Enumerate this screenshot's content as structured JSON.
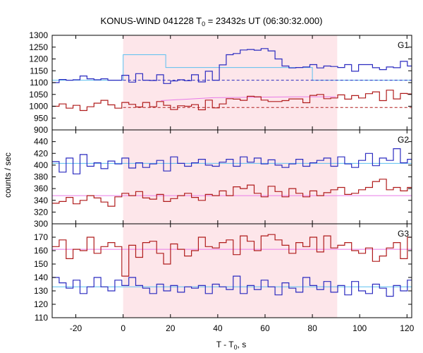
{
  "chart_data": {
    "type": "line",
    "title_main": "KONUS-WIND 041228 T",
    "title_sub": "0",
    "title_rest": " = 23432s UT (06:30:32.000)",
    "ylabel": "counts / sec",
    "xlabel_main": "T - T",
    "xlabel_sub": "0",
    "xlabel_rest": ", s",
    "xlim": [
      -30,
      122
    ],
    "xticks": [
      -20,
      0,
      20,
      40,
      60,
      80,
      100,
      120
    ],
    "xtick_labels": [
      "-20",
      "0",
      "20",
      "40",
      "60",
      "80",
      "100",
      "120"
    ],
    "highlight_interval": [
      0,
      90.5
    ],
    "colors": {
      "blue": "#2b2bc0",
      "red": "#b01c1c",
      "fit_light": "#5cc0f0",
      "fit_pink": "#e87ae8",
      "band": "#fde6ea"
    },
    "panels": [
      {
        "label": "G1",
        "ylim": [
          900,
          1300
        ],
        "yticks": [
          900,
          950,
          1000,
          1050,
          1100,
          1150,
          1200,
          1250,
          1300
        ],
        "ytick_labels": [
          "900",
          "950",
          "1000",
          "1050",
          "1100",
          "1150",
          "1200",
          "1250",
          "1300"
        ],
        "bin_width": 2.944,
        "x_start": -30,
        "series": [
          {
            "color": "blue",
            "values": [
              1100,
              1113,
              1110,
              1112,
              1128,
              1116,
              1112,
              1116,
              1110,
              1110,
              1131,
              1102,
              1138,
              1110,
              1109,
              1133,
              1096,
              1107,
              1112,
              1108,
              1133,
              1103,
              1148,
              1110,
              1175,
              1218,
              1223,
              1238,
              1240,
              1237,
              1244,
              1234,
              1200,
              1170,
              1162,
              1164,
              1166,
              1176,
              1162,
              1170,
              1168,
              1164,
              1176,
              1148,
              1176,
              1176,
              1163,
              1155,
              1166,
              1163,
              1190,
              1170,
              1160,
              1146,
              1188,
              1172,
              1162,
              1162,
              1150,
              1140,
              1112,
              1116,
              1115,
              1111,
              1114,
              1110,
              1112,
              1110,
              1110,
              1118,
              1114,
              1112,
              1108,
              1110,
              1110,
              1112,
              1108,
              1112,
              1132,
              1105,
              1116,
              1113,
              1114,
              1112,
              1112,
              1110,
              1112,
              1126,
              1112,
              1115,
              1131,
              1108,
              1112,
              1107,
              1108,
              1110,
              1130,
              1112,
              1116,
              1110,
              1113
            ]
          },
          {
            "color": "red",
            "values": [
              1000,
              1010,
              992,
              1004,
              982,
              998,
              1013,
              1025,
              1006,
              992,
              1016,
              1008,
              997,
              1016,
              998,
              1020,
              1004,
              986,
              1002,
              1000,
              1007,
              985,
              1026,
              993,
              1010,
              1032,
              1030,
              1025,
              1042,
              1040,
              1026,
              1020,
              1020,
              1024,
              1031,
              1031,
              1015,
              1046,
              1050,
              1032,
              1035,
              1048,
              1030,
              1045,
              1035,
              1053,
              1061,
              1024,
              1068,
              1031,
              1054,
              1052,
              1055,
              1062,
              1043,
              1028,
              1036,
              1064,
              1040,
              1025,
              1012,
              1006,
              994,
              1002,
              988,
              1012,
              1003,
              990,
              1006,
              996,
              988,
              1008,
              991,
              982,
              1002,
              1000,
              1017,
              990,
              1032,
              993,
              1004,
              994,
              1012,
              994,
              986,
              996,
              1002,
              1014,
              1000,
              995,
              1023,
              1000,
              1016,
              997,
              1002,
              1024,
              1007,
              992,
              980,
              1000,
              1006
            ]
          }
        ],
        "fits": [
          {
            "color": "fit_light",
            "segments": [
              [
                -30,
                1110
              ],
              [
                0,
                1110
              ],
              [
                0,
                1218
              ],
              [
                18,
                1218
              ],
              [
                18,
                1164
              ],
              [
                80,
                1164
              ],
              [
                80,
                1110
              ],
              [
                122,
                1110
              ]
            ]
          },
          {
            "color": "blue",
            "dashed": true,
            "segments": [
              [
                0,
                1110
              ],
              [
                122,
                1110
              ]
            ]
          },
          {
            "color": "fit_pink",
            "segments": [
              [
                16,
                1024
              ],
              [
                38,
                1036
              ],
              [
                74,
                1040
              ],
              [
                90,
                1040
              ]
            ]
          },
          {
            "color": "red",
            "dashed": true,
            "segments": [
              [
                0,
                995
              ],
              [
                122,
                995
              ]
            ]
          }
        ]
      },
      {
        "label": "G2",
        "ylim": [
          300,
          460
        ],
        "yticks": [
          300,
          320,
          340,
          360,
          380,
          400,
          420,
          440
        ],
        "ytick_labels": [
          "300",
          "320",
          "340",
          "360",
          "380",
          "400",
          "420",
          "440"
        ],
        "bin_width": 2.944,
        "x_start": -30,
        "series": [
          {
            "color": "blue",
            "values": [
              406,
              388,
              412,
              385,
              418,
              398,
              404,
              394,
              407,
              402,
              412,
              395,
              404,
              396,
              402,
              408,
              390,
              414,
              403,
              398,
              404,
              410,
              400,
              398,
              405,
              410,
              398,
              414,
              405,
              412,
              402,
              409,
              400,
              396,
              402,
              410,
              398,
              404,
              408,
              412,
              398,
              414,
              402,
              396,
              408,
              420,
              399,
              412,
              408,
              428,
              404,
              410,
              396,
              410,
              426,
              404,
              414,
              420,
              402,
              412,
              406,
              403,
              415,
              398,
              412,
              404,
              412,
              407,
              404,
              398,
              402,
              412,
              398,
              415,
              404,
              392,
              404,
              412,
              398,
              408,
              400,
              425,
              404,
              412,
              400,
              402,
              396,
              408,
              404,
              415,
              400,
              410,
              402,
              418,
              404,
              396,
              410,
              402,
              418,
              403,
              405
            ]
          },
          {
            "color": "red",
            "values": [
              335,
              338,
              345,
              334,
              340,
              348,
              344,
              337,
              330,
              346,
              352,
              348,
              355,
              344,
              342,
              350,
              338,
              343,
              348,
              352,
              345,
              340,
              350,
              348,
              356,
              348,
              363,
              360,
              366,
              352,
              346,
              364,
              355,
              346,
              360,
              352,
              346,
              356,
              348,
              353,
              358,
              362,
              350,
              352,
              358,
              362,
              372,
              376,
              358,
              362,
              356,
              362,
              356,
              352,
              360,
              350,
              356,
              350,
              346,
              352,
              338,
              346,
              352,
              344,
              350,
              354,
              344,
              350,
              354,
              346,
              362,
              352,
              348,
              358,
              352,
              346,
              344,
              358,
              351,
              346,
              338,
              348,
              360,
              352,
              344,
              354,
              348,
              358,
              344,
              350,
              360,
              352,
              346,
              354,
              342,
              356,
              344,
              348,
              352,
              346,
              350
            ]
          }
        ],
        "fits": [
          {
            "color": "fit_light",
            "segments": [
              [
                -30,
                403
              ],
              [
                122,
                403
              ]
            ]
          },
          {
            "color": "fit_pink",
            "segments": [
              [
                -30,
                348
              ],
              [
                122,
                348
              ]
            ]
          }
        ]
      },
      {
        "label": "G3",
        "ylim": [
          110,
          180
        ],
        "yticks": [
          110,
          120,
          130,
          140,
          150,
          160,
          170
        ],
        "ytick_labels": [
          "110",
          "120",
          "130",
          "140",
          "150",
          "160",
          "170"
        ],
        "bin_width": 2.944,
        "x_start": -30,
        "series": [
          {
            "color": "red",
            "values": [
              163,
              168,
              154,
              161,
              160,
              170,
              158,
              163,
              166,
              163,
              141,
              164,
              155,
              166,
              167,
              158,
              150,
              165,
              161,
              156,
              160,
              170,
              163,
              162,
              166,
              168,
              157,
              171,
              167,
              160,
              171,
              172,
              168,
              164,
              158,
              166,
              163,
              170,
              159,
              171,
              162,
              164,
              166,
              160,
              158,
              162,
              152,
              156,
              162,
              166,
              154,
              170,
              168,
              152,
              164,
              172,
              161,
              166,
              158,
              170,
              160,
              168,
              164,
              159,
              156,
              162,
              166,
              150,
              157,
              160,
              162,
              168,
              156,
              165,
              160,
              166,
              148,
              162,
              168,
              160,
              164,
              162,
              166,
              159,
              170,
              160,
              152,
              162,
              156,
              164,
              160,
              166,
              158,
              165,
              162,
              156,
              160,
              166,
              162,
              166,
              158
            ]
          },
          {
            "color": "blue",
            "values": [
              140,
              136,
              132,
              138,
              128,
              133,
              140,
              133,
              130,
              138,
              134,
              140,
              134,
              132,
              128,
              135,
              130,
              134,
              129,
              133,
              132,
              134,
              128,
              135,
              133,
              131,
              141,
              128,
              134,
              131,
              138,
              133,
              127,
              136,
              132,
              129,
              140,
              134,
              131,
              137,
              129,
              134,
              127,
              137,
              130,
              128,
              135,
              132,
              126,
              134,
              130,
              138,
              133,
              128,
              136,
              132,
              129,
              134,
              127,
              131,
              140,
              130,
              131,
              133,
              124,
              134,
              130,
              136,
              128,
              132,
              138,
              134,
              128,
              136,
              130,
              124,
              131,
              137,
              129,
              134,
              132,
              128,
              136,
              130,
              124,
              134,
              129,
              133,
              127,
              132,
              129,
              135,
              130,
              132,
              128,
              133,
              130,
              134,
              132,
              128,
              130
            ]
          }
        ],
        "fits": [
          {
            "color": "fit_pink",
            "segments": [
              [
                -30,
                161
              ],
              [
                122,
                161
              ]
            ]
          },
          {
            "color": "fit_light",
            "segments": [
              [
                -30,
                133
              ],
              [
                122,
                133
              ]
            ]
          }
        ]
      }
    ]
  }
}
